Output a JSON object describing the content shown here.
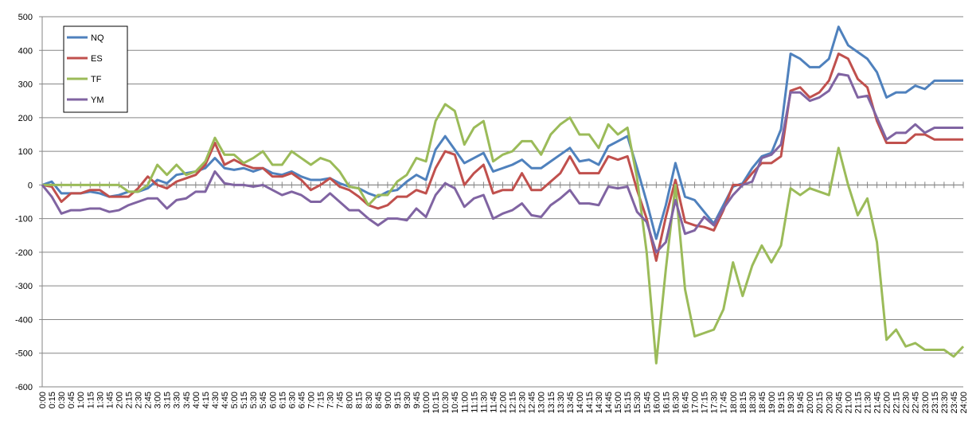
{
  "chart_data": {
    "type": "line",
    "categories": [
      "0:00",
      "0:15",
      "0:30",
      "0:45",
      "1:00",
      "1:15",
      "1:30",
      "1:45",
      "2:00",
      "2:15",
      "2:30",
      "2:45",
      "3:00",
      "3:15",
      "3:30",
      "3:45",
      "4:00",
      "4:15",
      "4:30",
      "4:45",
      "5:00",
      "5:15",
      "5:30",
      "5:45",
      "6:00",
      "6:15",
      "6:30",
      "6:45",
      "7:00",
      "7:15",
      "7:30",
      "7:45",
      "8:00",
      "8:15",
      "8:30",
      "8:45",
      "9:00",
      "9:15",
      "9:30",
      "9:45",
      "10:00",
      "10:15",
      "10:30",
      "10:45",
      "11:00",
      "11:15",
      "11:30",
      "11:45",
      "12:00",
      "12:15",
      "12:30",
      "12:45",
      "13:00",
      "13:15",
      "13:30",
      "13:45",
      "14:00",
      "14:15",
      "14:30",
      "14:45",
      "15:00",
      "15:15",
      "15:30",
      "15:45",
      "16:00",
      "16:15",
      "16:30",
      "16:45",
      "17:00",
      "17:15",
      "17:30",
      "17:45",
      "18:00",
      "18:15",
      "18:30",
      "18:45",
      "19:00",
      "19:15",
      "19:30",
      "19:45",
      "20:00",
      "20:15",
      "20:30",
      "20:45",
      "21:00",
      "21:15",
      "21:30",
      "21:45",
      "22:00",
      "22:15",
      "22:30",
      "22:45",
      "23:00",
      "23:15",
      "23:30",
      "23:45",
      "24:00"
    ],
    "series": [
      {
        "name": "NQ",
        "color": "#4f81bd",
        "values": [
          0,
          10,
          -25,
          -25,
          -25,
          -20,
          -25,
          -35,
          -30,
          -20,
          -20,
          -10,
          15,
          5,
          30,
          35,
          40,
          50,
          80,
          50,
          45,
          50,
          40,
          50,
          35,
          30,
          40,
          25,
          15,
          15,
          20,
          5,
          -5,
          -10,
          -25,
          -35,
          -20,
          -15,
          10,
          30,
          15,
          105,
          145,
          105,
          65,
          80,
          95,
          40,
          50,
          60,
          75,
          50,
          50,
          70,
          90,
          110,
          70,
          75,
          60,
          115,
          130,
          145,
          50,
          -50,
          -160,
          -60,
          65,
          -35,
          -45,
          -80,
          -115,
          -60,
          -5,
          5,
          50,
          85,
          95,
          165,
          390,
          375,
          350,
          350,
          375,
          470,
          415,
          395,
          375,
          335,
          260,
          275,
          275,
          295,
          285,
          310,
          310,
          310,
          310
        ]
      },
      {
        "name": "ES",
        "color": "#c0504d",
        "values": [
          0,
          -5,
          -50,
          -25,
          -25,
          -15,
          -15,
          -35,
          -35,
          -35,
          -10,
          25,
          0,
          -10,
          10,
          20,
          30,
          60,
          125,
          60,
          75,
          60,
          50,
          50,
          25,
          25,
          35,
          15,
          -15,
          0,
          20,
          -5,
          -15,
          -35,
          -60,
          -70,
          -60,
          -35,
          -35,
          -15,
          -25,
          50,
          100,
          90,
          0,
          35,
          60,
          -25,
          -15,
          -15,
          35,
          -15,
          -15,
          10,
          35,
          85,
          35,
          35,
          35,
          85,
          75,
          85,
          -15,
          -100,
          -225,
          -95,
          15,
          -110,
          -120,
          -125,
          -135,
          -75,
          0,
          0,
          35,
          65,
          65,
          85,
          280,
          290,
          260,
          275,
          310,
          390,
          375,
          315,
          290,
          190,
          125,
          125,
          125,
          150,
          150,
          135,
          135,
          135,
          135
        ]
      },
      {
        "name": "TF",
        "color": "#9bbb59",
        "values": [
          0,
          0,
          0,
          0,
          0,
          0,
          0,
          0,
          0,
          -20,
          -20,
          0,
          60,
          30,
          60,
          30,
          40,
          70,
          140,
          90,
          90,
          65,
          80,
          100,
          60,
          60,
          100,
          80,
          60,
          80,
          70,
          40,
          -5,
          -10,
          -60,
          -30,
          -30,
          10,
          30,
          80,
          70,
          190,
          240,
          220,
          120,
          170,
          190,
          70,
          90,
          100,
          130,
          130,
          90,
          150,
          180,
          200,
          150,
          150,
          110,
          180,
          150,
          170,
          20,
          -200,
          -530,
          -250,
          0,
          -310,
          -450,
          -440,
          -430,
          -370,
          -230,
          -330,
          -240,
          -180,
          -230,
          -180,
          -10,
          -30,
          -10,
          -20,
          -30,
          110,
          0,
          -90,
          -40,
          -170,
          -460,
          -430,
          -480,
          -470,
          -490,
          -490,
          -490,
          -510,
          -480
        ]
      },
      {
        "name": "YM",
        "color": "#8064a2",
        "values": [
          0,
          -35,
          -85,
          -75,
          -75,
          -70,
          -70,
          -80,
          -75,
          -60,
          -50,
          -40,
          -40,
          -70,
          -45,
          -40,
          -20,
          -20,
          40,
          5,
          0,
          0,
          -5,
          0,
          -15,
          -30,
          -20,
          -30,
          -50,
          -50,
          -25,
          -50,
          -75,
          -75,
          -100,
          -120,
          -100,
          -100,
          -105,
          -70,
          -95,
          -30,
          5,
          -10,
          -65,
          -40,
          -30,
          -100,
          -85,
          -75,
          -55,
          -90,
          -95,
          -60,
          -40,
          -15,
          -55,
          -55,
          -60,
          -5,
          -10,
          -5,
          -80,
          -110,
          -200,
          -170,
          -45,
          -145,
          -135,
          -95,
          -120,
          -70,
          -30,
          0,
          10,
          80,
          90,
          120,
          275,
          275,
          250,
          260,
          280,
          330,
          325,
          260,
          265,
          200,
          135,
          155,
          155,
          180,
          155,
          170,
          170,
          170,
          170
        ]
      }
    ],
    "ylim": [
      -600,
      500
    ],
    "yticks": [
      -600,
      -500,
      -400,
      -300,
      -200,
      -100,
      0,
      100,
      200,
      300,
      400,
      500
    ],
    "grid": true,
    "legend": "top-left"
  }
}
